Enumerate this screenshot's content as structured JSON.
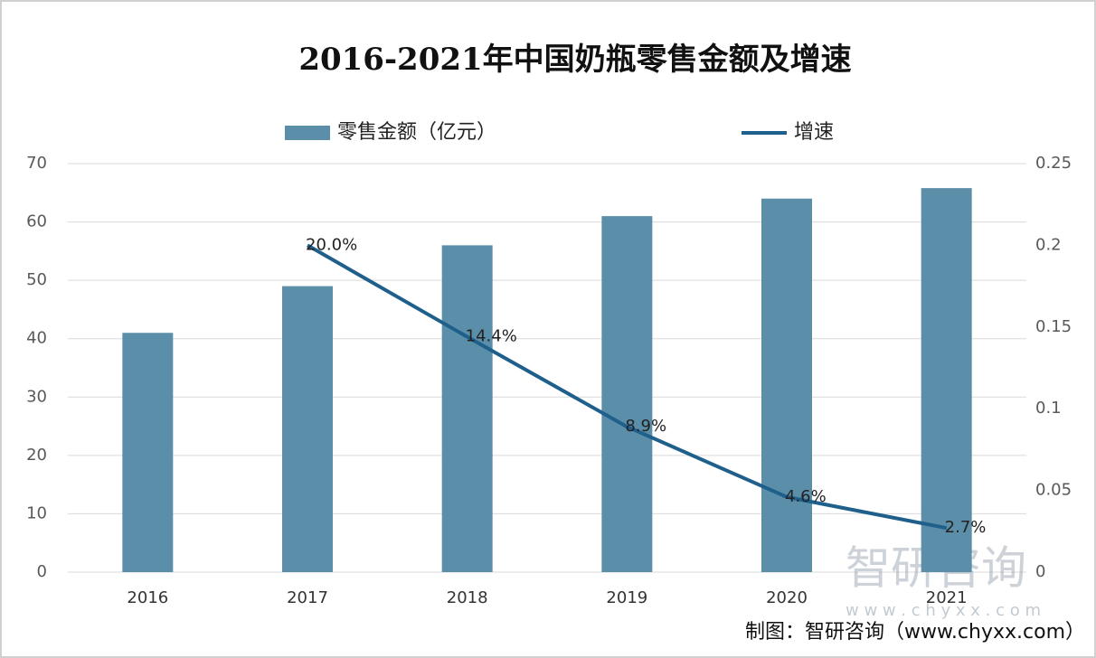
{
  "chart_data": {
    "type": "bar_line",
    "title": "2016-2021年中国奶瓶零售金额及增速",
    "categories": [
      "2016",
      "2017",
      "2018",
      "2019",
      "2020",
      "2021"
    ],
    "series": [
      {
        "name": "零售金额（亿元）",
        "type": "bar",
        "color": "#5b8ea8",
        "values": [
          41,
          49,
          56,
          61,
          64,
          65.8
        ]
      },
      {
        "name": "增速",
        "type": "line",
        "axis": "y2",
        "color": "#1f5f8b",
        "values": [
          null,
          0.2,
          0.144,
          0.089,
          0.046,
          0.027
        ],
        "value_labels": [
          null,
          "20.0%",
          "14.4%",
          "8.9%",
          "4.6%",
          "2.7%"
        ]
      }
    ],
    "ylim": [
      0,
      70
    ],
    "yticks": [
      0,
      10,
      20,
      30,
      40,
      50,
      60,
      70
    ],
    "y2lim": [
      0,
      0.25
    ],
    "y2ticks": [
      0,
      0.05,
      0.1,
      0.15,
      0.2,
      0.25
    ],
    "grid": true,
    "watermark": [
      "智研咨询",
      "w w w . c h y x x . c o m"
    ],
    "source": "制图：智研咨询（www.chyxx.com）"
  }
}
